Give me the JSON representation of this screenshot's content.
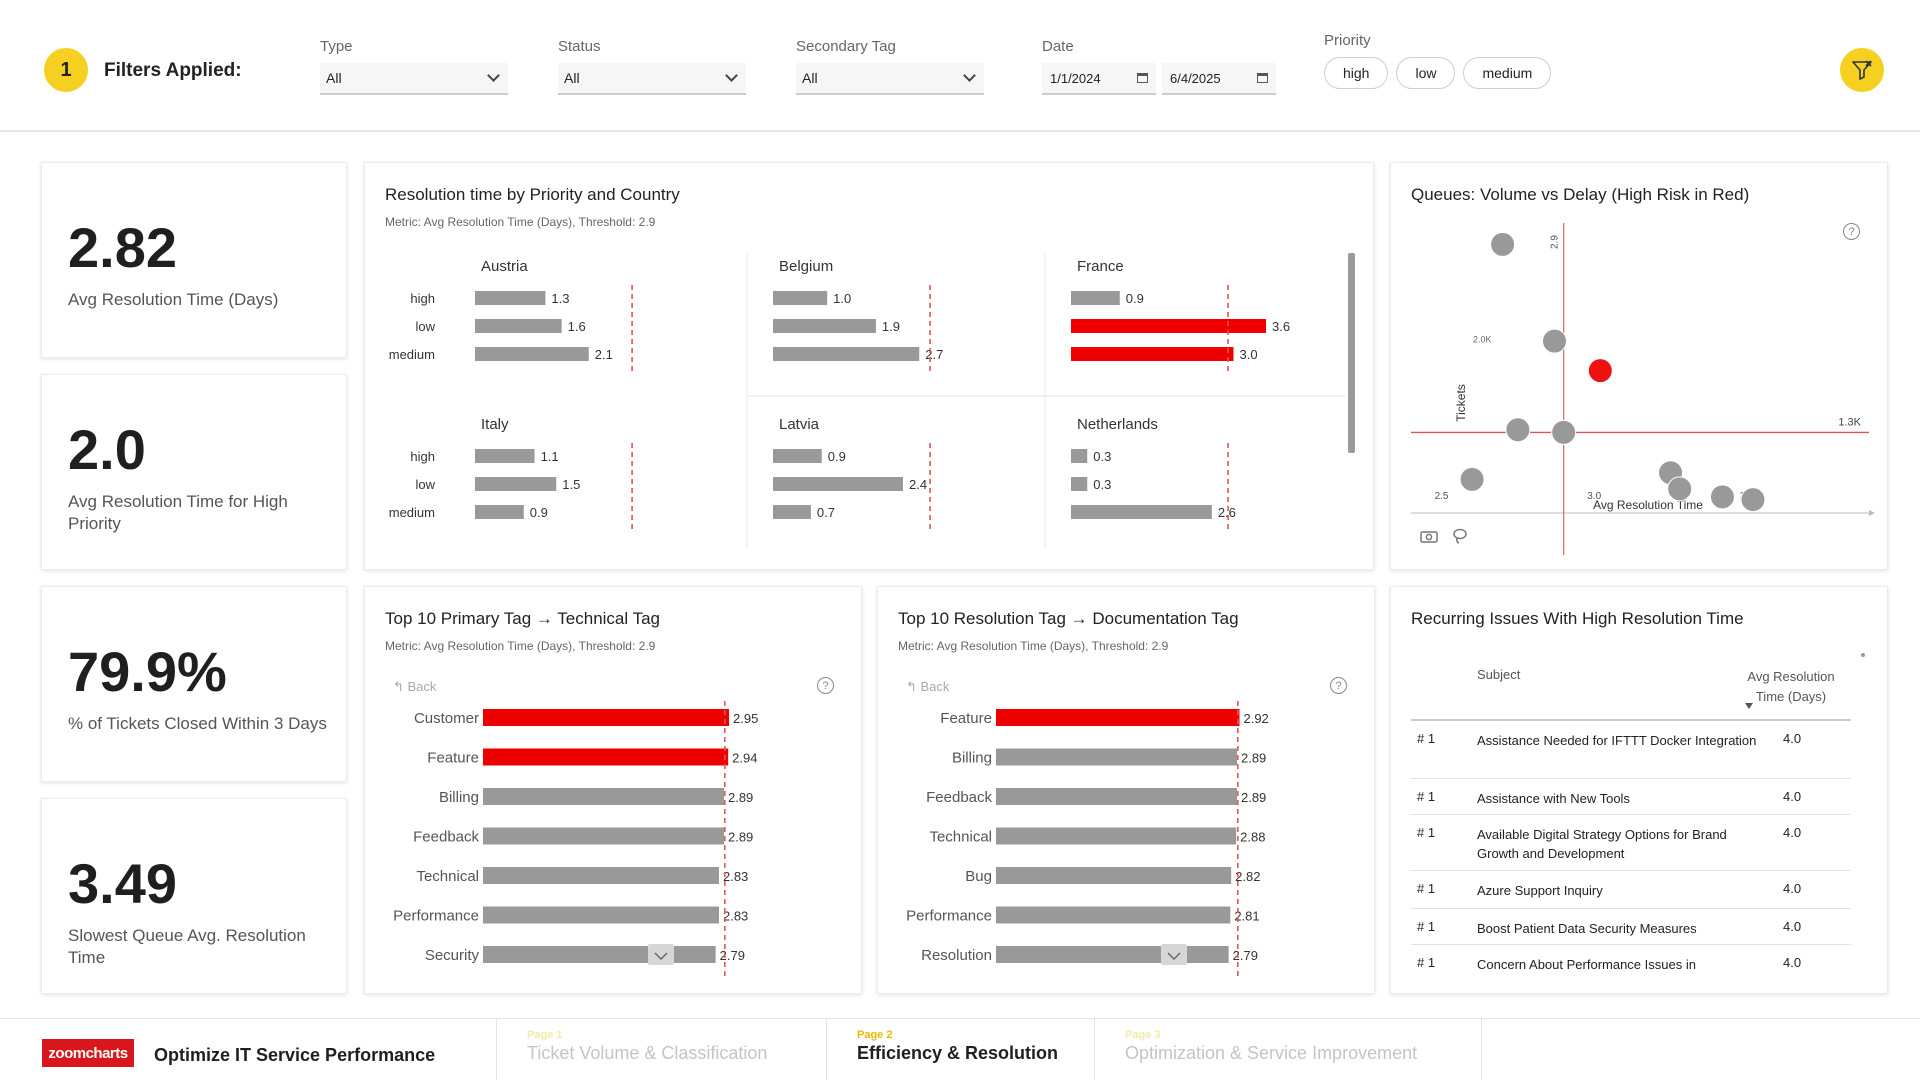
{
  "filters": {
    "count": "1",
    "label": "Filters Applied:",
    "type": {
      "label": "Type",
      "value": "All"
    },
    "status": {
      "label": "Status",
      "value": "All"
    },
    "secondary_tag": {
      "label": "Secondary Tag",
      "value": "All"
    },
    "date": {
      "label": "Date",
      "from": "1/1/2024",
      "to": "6/4/2025"
    },
    "priority": {
      "label": "Priority",
      "options": [
        "high",
        "low",
        "medium"
      ]
    }
  },
  "kpis": [
    {
      "value": "2.82",
      "label": "Avg Resolution Time (Days)"
    },
    {
      "value": "2.0",
      "label": "Avg Resolution Time for High Priority"
    },
    {
      "value": "79.9%",
      "label": "% of Tickets Closed Within 3 Days"
    },
    {
      "value": "3.49",
      "label": "Slowest Queue Avg. Resolution Time"
    }
  ],
  "colors": {
    "accent": "#f5d020",
    "risk": "#ee0000",
    "bar": "#999999",
    "threshold": "#e25555"
  },
  "small_multiples": {
    "title": "Resolution time by Priority and Country",
    "subtitle": "Metric: Avg Resolution Time (Days), Threshold: 2.9"
  },
  "scatter_card": {
    "title": "Queues: Volume vs Delay (High Risk in Red)",
    "help": "?"
  },
  "bar_chart_1": {
    "title": "Top 10 Primary Tag → Technical Tag",
    "subtitle": "Metric: Avg Resolution Time (Days), Threshold: 2.9",
    "back": "Back",
    "help": "?"
  },
  "bar_chart_2": {
    "title": "Top 10 Resolution Tag → Documentation Tag",
    "subtitle": "Metric: Avg Resolution Time (Days), Threshold: 2.9",
    "back": "Back",
    "help": "?"
  },
  "chart_data": [
    {
      "type": "bar",
      "orientation": "horizontal",
      "facets": [
        {
          "name": "Austria",
          "categories": [
            "high",
            "low",
            "medium"
          ],
          "values": [
            1.3,
            1.6,
            2.1
          ]
        },
        {
          "name": "Belgium",
          "categories": [
            "high",
            "low",
            "medium"
          ],
          "values": [
            1.0,
            1.9,
            2.7
          ]
        },
        {
          "name": "France",
          "categories": [
            "high",
            "low",
            "medium"
          ],
          "values": [
            0.9,
            3.6,
            3.0
          ]
        },
        {
          "name": "Italy",
          "categories": [
            "high",
            "low",
            "medium"
          ],
          "values": [
            1.1,
            1.5,
            0.9
          ]
        },
        {
          "name": "Latvia",
          "categories": [
            "high",
            "low",
            "medium"
          ],
          "values": [
            0.9,
            2.4,
            0.7
          ]
        },
        {
          "name": "Netherlands",
          "categories": [
            "high",
            "low",
            "medium"
          ],
          "values": [
            0.3,
            0.3,
            2.6
          ]
        }
      ],
      "threshold": 2.9,
      "xlim": [
        0,
        3.6
      ]
    },
    {
      "type": "scatter",
      "xlabel": "Avg Resolution Time",
      "ylabel": "Tickets",
      "x_ticks": [
        "2.5",
        "3.0",
        "3.5"
      ],
      "y_ticks": [
        "2.0K"
      ],
      "ref_x": 2.9,
      "ref_x_label": "2.9",
      "ref_y": 1300,
      "ref_y_label": "1.3K",
      "xlim": [
        2.4,
        3.9
      ],
      "ylim": [
        700,
        2800
      ],
      "points": [
        {
          "x": 2.7,
          "y": 2700,
          "risk": false
        },
        {
          "x": 2.75,
          "y": 1320,
          "risk": false
        },
        {
          "x": 2.9,
          "y": 1300,
          "risk": false
        },
        {
          "x": 2.87,
          "y": 1980,
          "risk": false
        },
        {
          "x": 3.02,
          "y": 1760,
          "risk": true
        },
        {
          "x": 2.6,
          "y": 950,
          "risk": false
        },
        {
          "x": 3.25,
          "y": 1000,
          "risk": false
        },
        {
          "x": 3.28,
          "y": 880,
          "risk": false
        },
        {
          "x": 3.42,
          "y": 820,
          "risk": false
        },
        {
          "x": 3.52,
          "y": 800,
          "risk": false
        }
      ]
    },
    {
      "type": "bar",
      "orientation": "horizontal",
      "categories": [
        "Customer",
        "Feature",
        "Billing",
        "Feedback",
        "Technical",
        "Performance",
        "Security"
      ],
      "values": [
        2.95,
        2.94,
        2.89,
        2.89,
        2.83,
        2.83,
        2.79
      ],
      "labels": [
        "2.95",
        "2.94",
        "2.89",
        "2.89",
        "2.83",
        "2.83",
        "2.79"
      ],
      "threshold": 2.9,
      "xlim": [
        0,
        2.95
      ]
    },
    {
      "type": "bar",
      "orientation": "horizontal",
      "categories": [
        "Feature",
        "Billing",
        "Feedback",
        "Technical",
        "Bug",
        "Performance",
        "Resolution"
      ],
      "values": [
        2.92,
        2.89,
        2.89,
        2.88,
        2.82,
        2.81,
        2.79
      ],
      "labels": [
        "2.92",
        "2.89",
        "2.89",
        "2.88",
        "2.82",
        "2.81",
        "2.79"
      ],
      "threshold": 2.9,
      "xlim": [
        0,
        2.95
      ]
    }
  ],
  "table": {
    "title": "Recurring Issues With High Resolution Time",
    "col_subject": "Subject",
    "col_avg": "Avg Resolution Time (Days)",
    "rows": [
      {
        "rank": "# 1",
        "subject": "Assistance Needed for IFTTT Docker Integration",
        "avg": "4.0"
      },
      {
        "rank": "# 1",
        "subject": "Assistance with New Tools",
        "avg": "4.0"
      },
      {
        "rank": "# 1",
        "subject": "Available Digital Strategy Options for Brand Growth and Development",
        "avg": "4.0"
      },
      {
        "rank": "# 1",
        "subject": "Azure Support Inquiry",
        "avg": "4.0"
      },
      {
        "rank": "# 1",
        "subject": "Boost Patient Data Security Measures",
        "avg": "4.0"
      },
      {
        "rank": "# 1",
        "subject": "Concern About Performance Issues in",
        "avg": "4.0"
      }
    ]
  },
  "footer": {
    "logo": "zoomcharts",
    "app_title": "Optimize IT Service Performance",
    "pages": [
      {
        "num": "Page 1",
        "name": "Ticket Volume & Classification"
      },
      {
        "num": "Page 2",
        "name": "Efficiency & Resolution"
      },
      {
        "num": "Page 3",
        "name": "Optimization & Service Improvement"
      }
    ]
  }
}
